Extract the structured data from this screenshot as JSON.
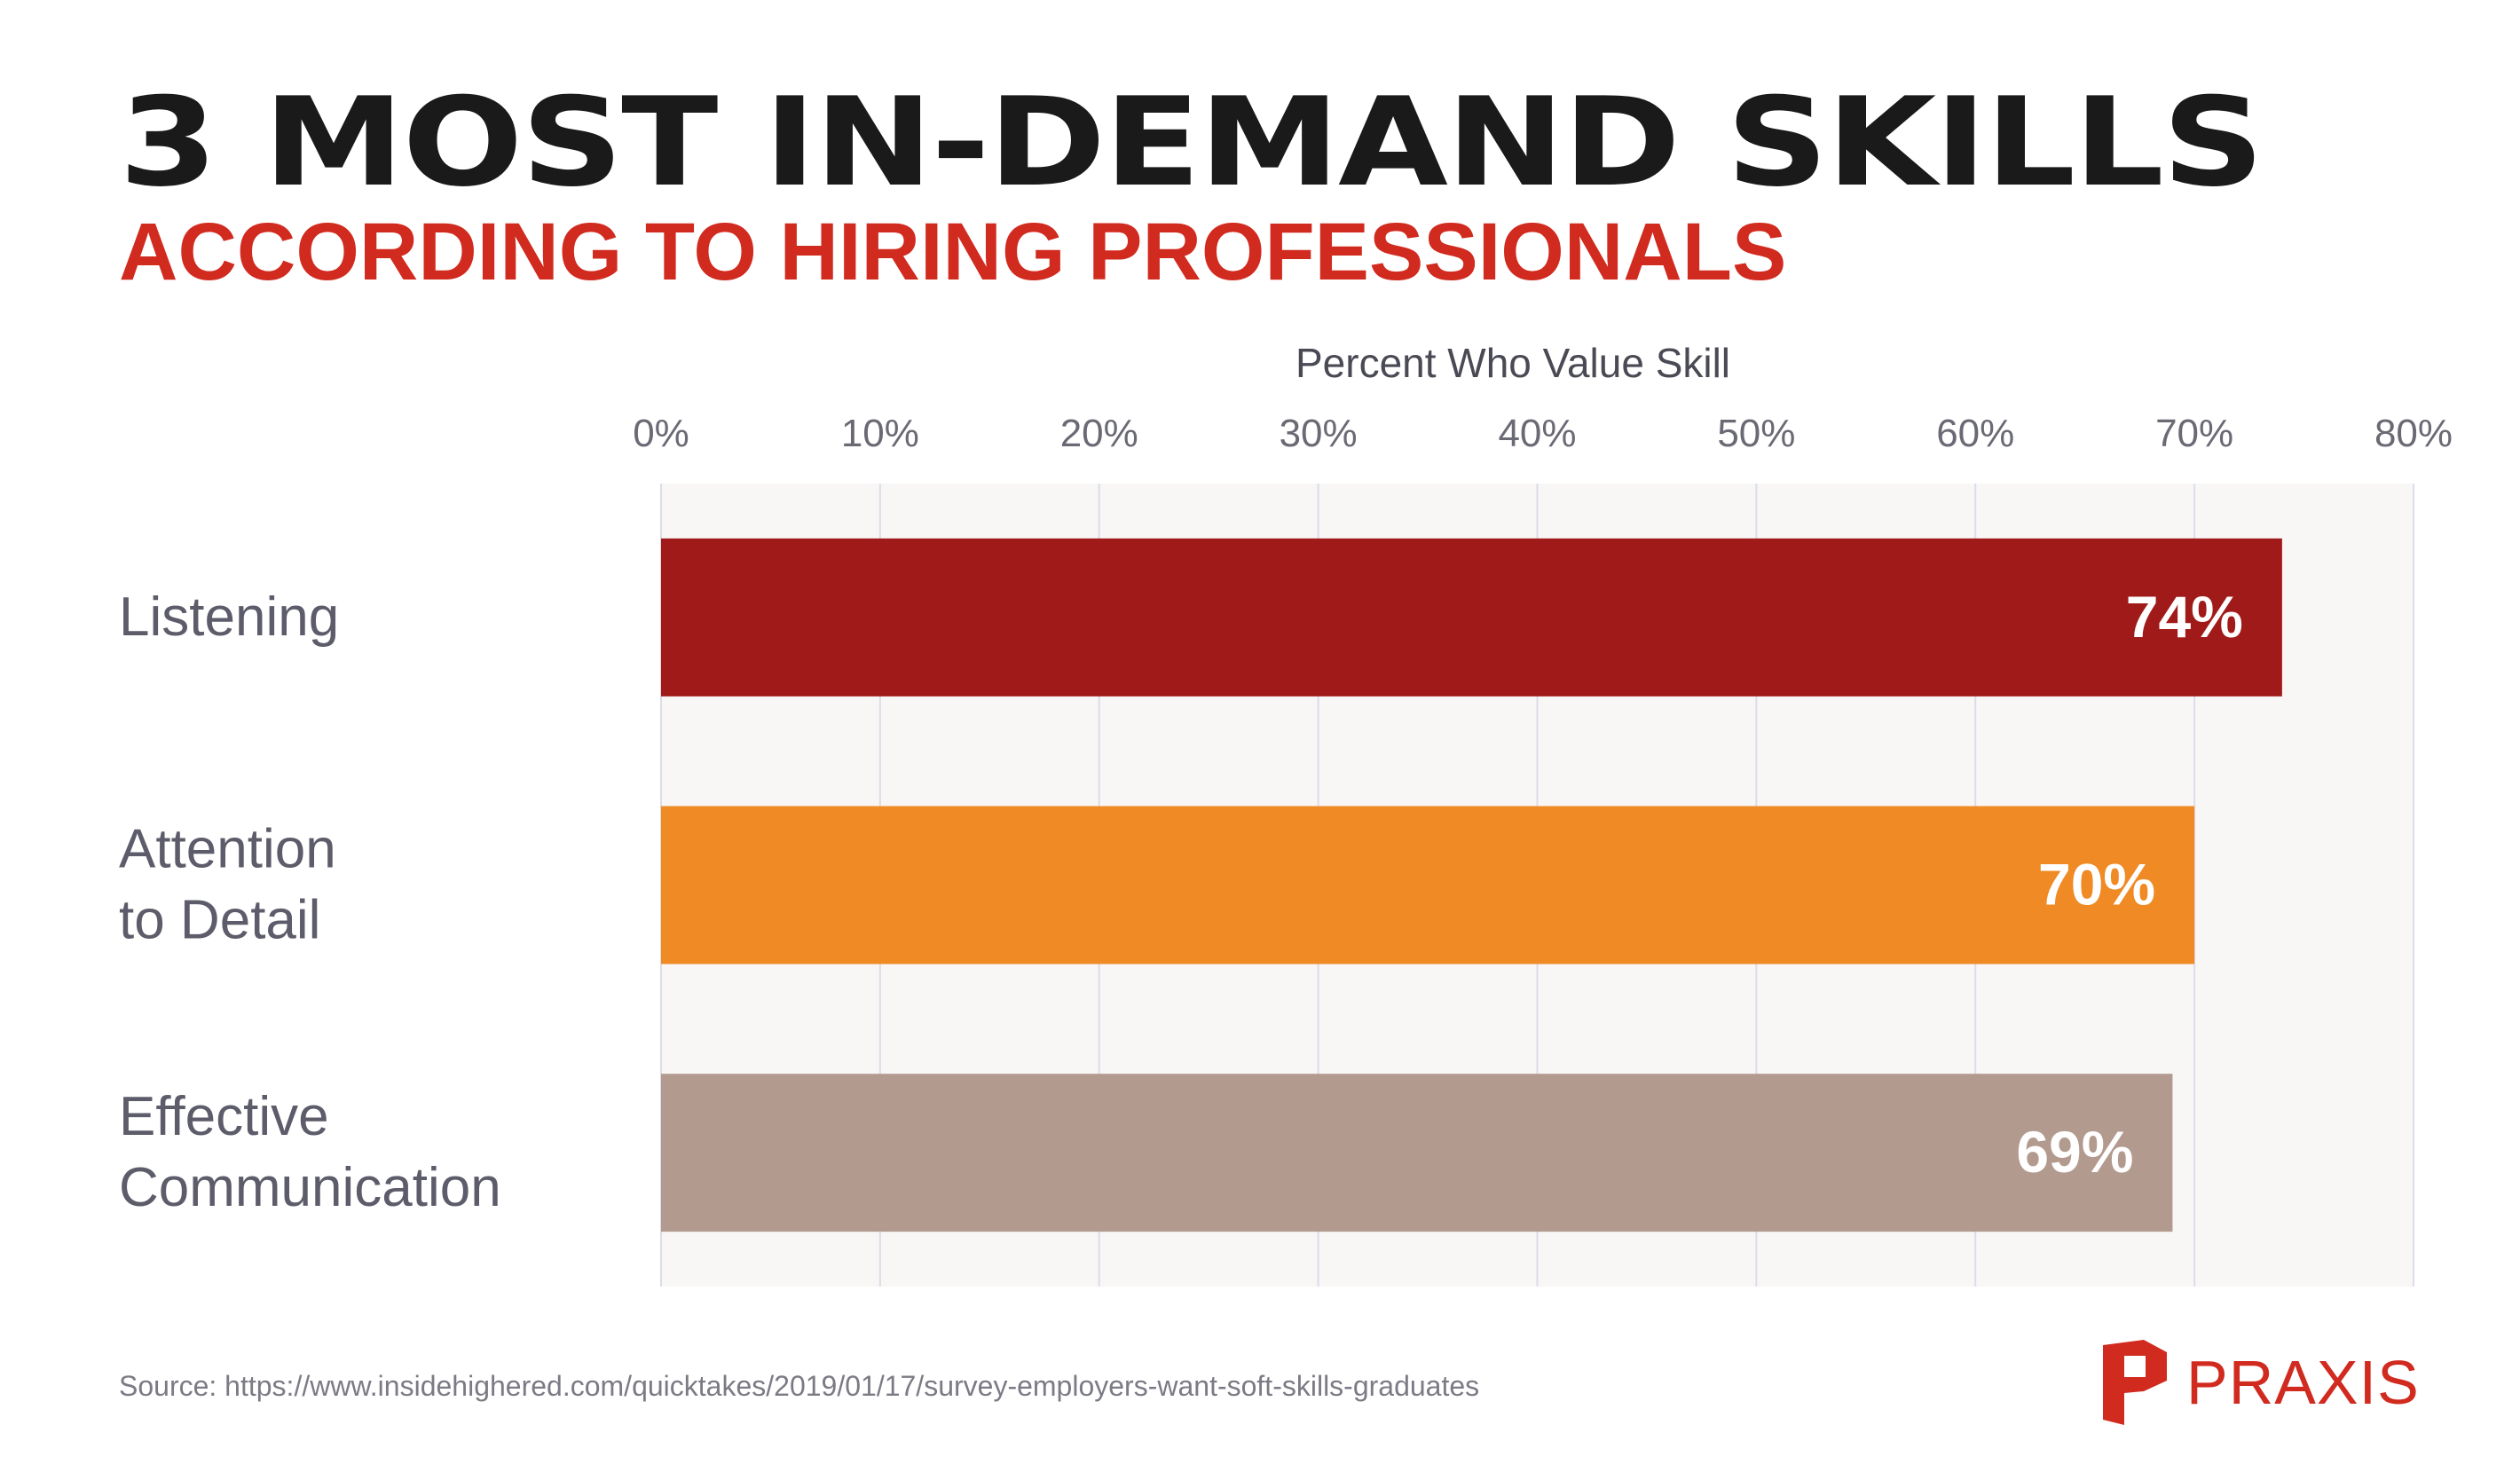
{
  "header": {
    "title": "3 MOST IN-DEMAND SKILLS",
    "subtitle": "ACCORDING TO HIRING PROFESSIONALS"
  },
  "footer": {
    "source": "Source: https://www.insidehighered.com/quicktakes/2019/01/17/survey-employers-want-soft-skills-graduates"
  },
  "logo": {
    "text": "PRAXIS",
    "icon": "praxis-p-icon",
    "color": "#d12a1f"
  },
  "chart_data": {
    "type": "bar",
    "orientation": "horizontal",
    "xlabel": "Percent Who Value Skill",
    "ylabel": "",
    "xlim": [
      0,
      80
    ],
    "x_ticks": [
      "0%",
      "10%",
      "20%",
      "30%",
      "40%",
      "50%",
      "60%",
      "70%",
      "80%"
    ],
    "categories": [
      [
        "Listening"
      ],
      [
        "Attention",
        "to Detail"
      ],
      [
        "Effective",
        "Communication"
      ]
    ],
    "values": [
      74,
      70,
      69
    ],
    "data_labels": [
      "74%",
      "70%",
      "69%"
    ],
    "colors": [
      "#a01a1a",
      "#ef8a24",
      "#b39a8e"
    ],
    "grid": "vertical",
    "plot_background": "#f8f7f6",
    "legend": "none"
  }
}
